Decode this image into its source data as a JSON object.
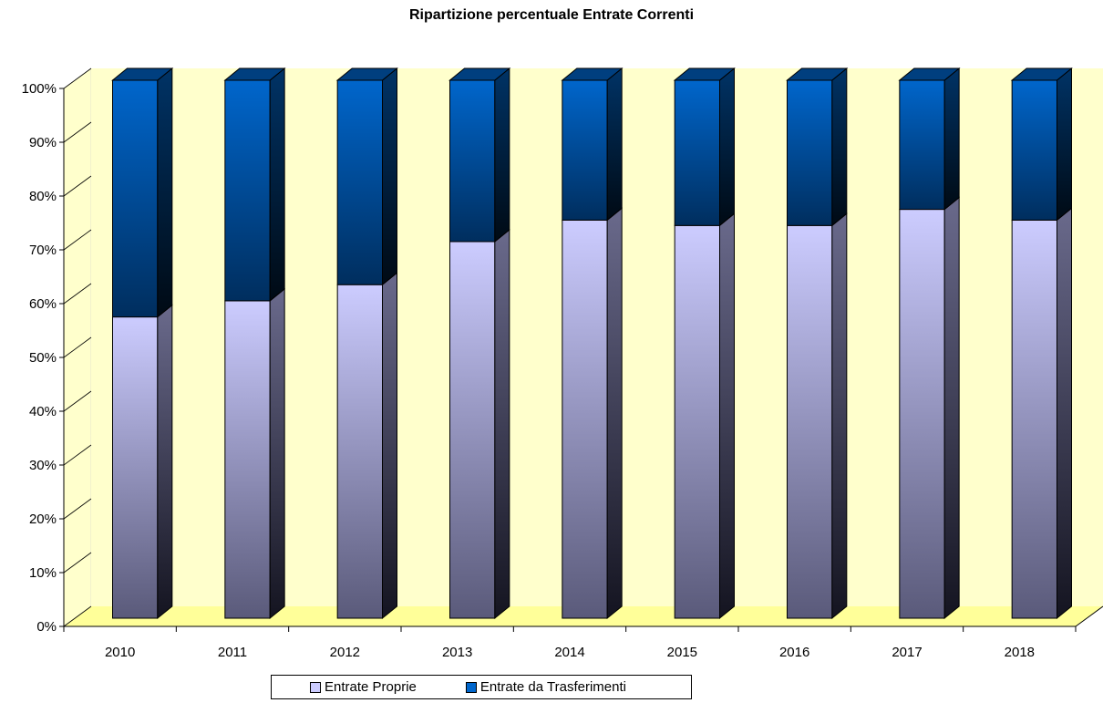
{
  "chart_data": {
    "type": "bar",
    "stacked": true,
    "percent": true,
    "style": "3d",
    "title": "Ripartizione percentuale Entrate Correnti",
    "categories": [
      "2010",
      "2011",
      "2012",
      "2013",
      "2014",
      "2015",
      "2016",
      "2017",
      "2018"
    ],
    "series": [
      {
        "name": "Entrate Proprie",
        "values": [
          56,
          59,
          62,
          70,
          74,
          73,
          73,
          76,
          74
        ],
        "color": "#CCCCFF"
      },
      {
        "name": "Entrate da Trasferimenti",
        "values": [
          44,
          41,
          38,
          30,
          26,
          27,
          27,
          24,
          26
        ],
        "color": "#0066CC"
      }
    ],
    "y_ticks": [
      "0%",
      "10%",
      "20%",
      "30%",
      "40%",
      "50%",
      "60%",
      "70%",
      "80%",
      "90%",
      "100%"
    ],
    "ylim": [
      0,
      100
    ],
    "grid": false,
    "wall_color": "#FFFFCC",
    "legend_position": "bottom"
  }
}
